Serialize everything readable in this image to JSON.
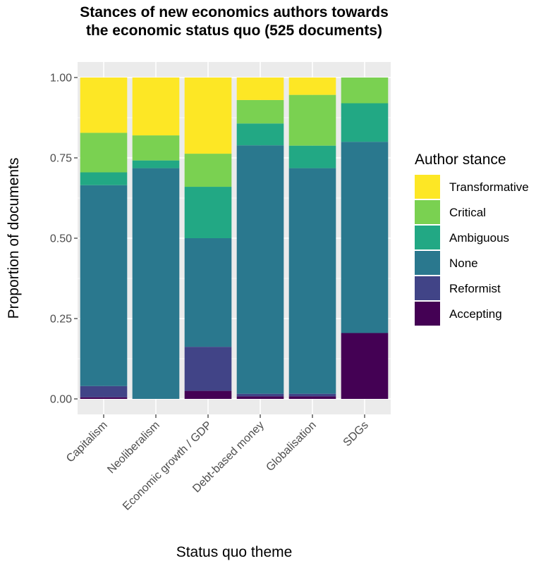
{
  "chart_data": {
    "type": "bar",
    "stacked": true,
    "title": [
      "Stances of new economics authors towards",
      "the economic status quo (525 documents)"
    ],
    "xlabel": "Status quo theme",
    "ylabel": "Proportion of documents",
    "ylim": [
      0,
      1
    ],
    "yticks": [
      "0.00",
      "0.25",
      "0.50",
      "0.75",
      "1.00"
    ],
    "ytick_values": [
      0,
      0.25,
      0.5,
      0.75,
      1.0
    ],
    "grid": true,
    "legend_position": "right",
    "categories": [
      "Capitalism",
      "Neoliberalism",
      "Economic growth / GDP",
      "Debt-based money",
      "Globalisation",
      "SDGs"
    ],
    "series": [
      {
        "name": "Accepting",
        "color": "#440154",
        "values": [
          0.005,
          0.0,
          0.025,
          0.008,
          0.008,
          0.205
        ]
      },
      {
        "name": "Reformist",
        "color": "#414487",
        "values": [
          0.035,
          0.0,
          0.137,
          0.008,
          0.008,
          0.0
        ]
      },
      {
        "name": "None",
        "color": "#2a788e",
        "values": [
          0.625,
          0.718,
          0.338,
          0.773,
          0.702,
          0.595
        ]
      },
      {
        "name": "Ambiguous",
        "color": "#22a884",
        "values": [
          0.04,
          0.024,
          0.16,
          0.068,
          0.07,
          0.12
        ]
      },
      {
        "name": "Critical",
        "color": "#7ad151",
        "values": [
          0.123,
          0.078,
          0.103,
          0.073,
          0.158,
          0.08
        ]
      },
      {
        "name": "Transformative",
        "color": "#fde725",
        "values": [
          0.172,
          0.18,
          0.237,
          0.07,
          0.054,
          0.0
        ]
      }
    ],
    "legend": {
      "title": "Author stance",
      "order": [
        "Transformative",
        "Critical",
        "Ambiguous",
        "None",
        "Reformist",
        "Accepting"
      ]
    }
  }
}
